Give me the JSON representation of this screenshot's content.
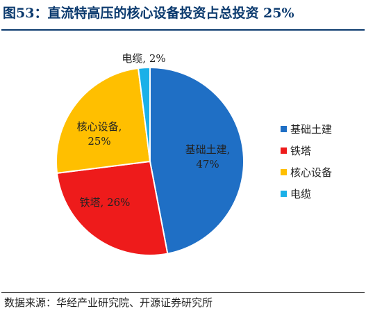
{
  "title": "图53：直流特高压的核心设备投资占总投资 25%",
  "source": "数据来源：华经产业研究院、开源证券研究所",
  "chart_data": {
    "type": "pie",
    "title": "",
    "slices": [
      {
        "name": "基础土建",
        "value": 47,
        "label": "基础土建,\n47%",
        "color": "#1f6fc5"
      },
      {
        "name": "铁塔",
        "value": 26,
        "label": "铁塔, 26%",
        "color": "#ee1b1b"
      },
      {
        "name": "核心设备",
        "value": 25,
        "label": "核心设备,\n25%",
        "color": "#ffbf00"
      },
      {
        "name": "电缆",
        "value": 2,
        "label": "电缆, 2%",
        "color": "#1ab0e8"
      }
    ],
    "start_angle_deg": 0,
    "direction": "clockwise",
    "legend": {
      "position": "right",
      "entries": [
        "基础土建",
        "铁塔",
        "核心设备",
        "电缆"
      ]
    }
  }
}
